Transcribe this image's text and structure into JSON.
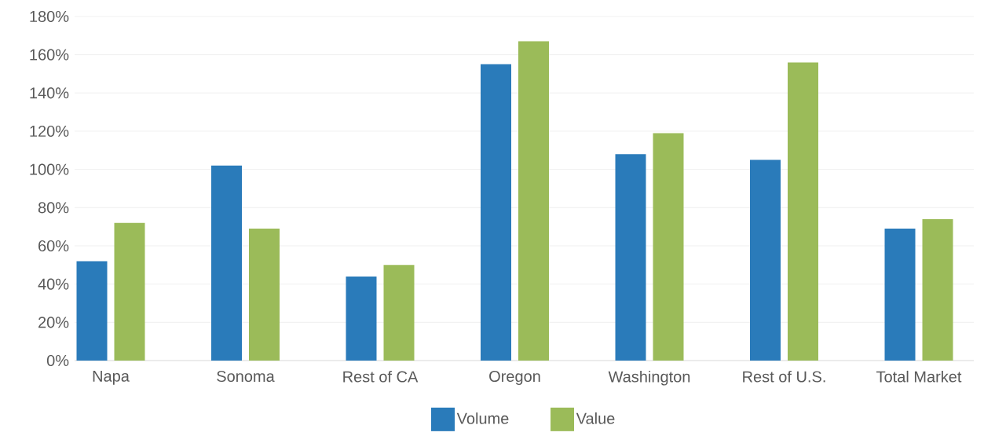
{
  "chart_data": {
    "type": "bar",
    "categories": [
      "Napa",
      "Sonoma",
      "Rest of CA",
      "Oregon",
      "Washington",
      "Rest of U.S.",
      "Total Market"
    ],
    "series": [
      {
        "name": "Volume",
        "color": "#2a7bba",
        "values": [
          52,
          102,
          44,
          155,
          108,
          105,
          69
        ]
      },
      {
        "name": "Value",
        "color": "#9bbb59",
        "values": [
          72,
          69,
          50,
          167,
          119,
          156,
          74
        ]
      }
    ],
    "ylim": [
      0,
      180
    ],
    "yticks": [
      {
        "value": 0,
        "label": "0%"
      },
      {
        "value": 20,
        "label": "20%"
      },
      {
        "value": 40,
        "label": "40%"
      },
      {
        "value": 60,
        "label": "60%"
      },
      {
        "value": 80,
        "label": "80%"
      },
      {
        "value": 100,
        "label": "100%"
      },
      {
        "value": 120,
        "label": "120%"
      },
      {
        "value": 140,
        "label": "140%"
      },
      {
        "value": 160,
        "label": "160%"
      },
      {
        "value": 180,
        "label": "180%"
      }
    ],
    "grid": "y",
    "legend": "bottom"
  }
}
